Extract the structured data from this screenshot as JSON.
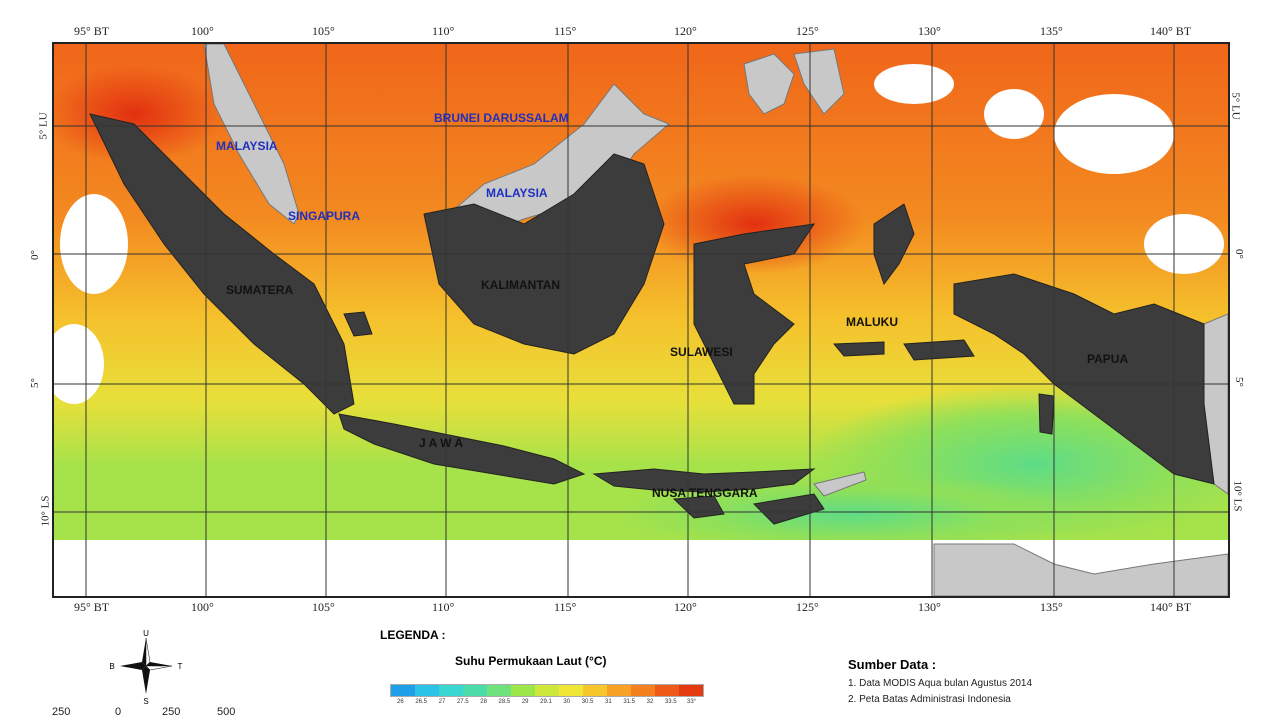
{
  "map": {
    "lon_ticks": [
      "95° BT",
      "100°",
      "105°",
      "110°",
      "115°",
      "120°",
      "125°",
      "130°",
      "135°",
      "140° BT"
    ],
    "lat_ticks_left": [
      "5° LU",
      "0°",
      "5°",
      "10° LS"
    ],
    "lat_ticks_right": [
      "5° LU",
      "0°",
      "5°",
      "10° LS"
    ],
    "countries": {
      "malaysia_west": "MALAYSIA",
      "singapura": "SINGAPURA",
      "brunei": "BRUNEI DARUSSALAM",
      "malaysia_east": "MALAYSIA"
    },
    "islands": {
      "sumatera": "SUMATERA",
      "kalimantan": "KALIMANTAN",
      "sulawesi": "SULAWESI",
      "maluku": "MALUKU",
      "papua": "PAPUA",
      "jawa": "J A W A",
      "nusa_tenggara": "NUSA TENGGARA"
    }
  },
  "legend": {
    "title": "LEGENDA :",
    "subtitle": "Suhu Permukaan Laut (°C)",
    "colors": [
      "#1e9fe8",
      "#2cc4e6",
      "#3ad6d2",
      "#4cdcaa",
      "#6ee27c",
      "#9ce64a",
      "#cde83a",
      "#f0e636",
      "#f6c82e",
      "#f7a227",
      "#f4801f",
      "#ee5a18",
      "#e43a12"
    ],
    "values": [
      "26",
      "26.5",
      "27",
      "27.5",
      "28",
      "28.5",
      "29",
      "29.1",
      "30",
      "30.5",
      "31",
      "31.5",
      "32",
      "33.5",
      "33°"
    ]
  },
  "compass": {
    "n": "U",
    "s": "S",
    "w": "B",
    "e": "T"
  },
  "scale": [
    "250",
    "0",
    "250",
    "500"
  ],
  "source": {
    "title": "Sumber Data :",
    "items": [
      "1. Data MODIS Aqua bulan Agustus 2014",
      "2. Peta Batas Administrasi Indonesia"
    ]
  }
}
